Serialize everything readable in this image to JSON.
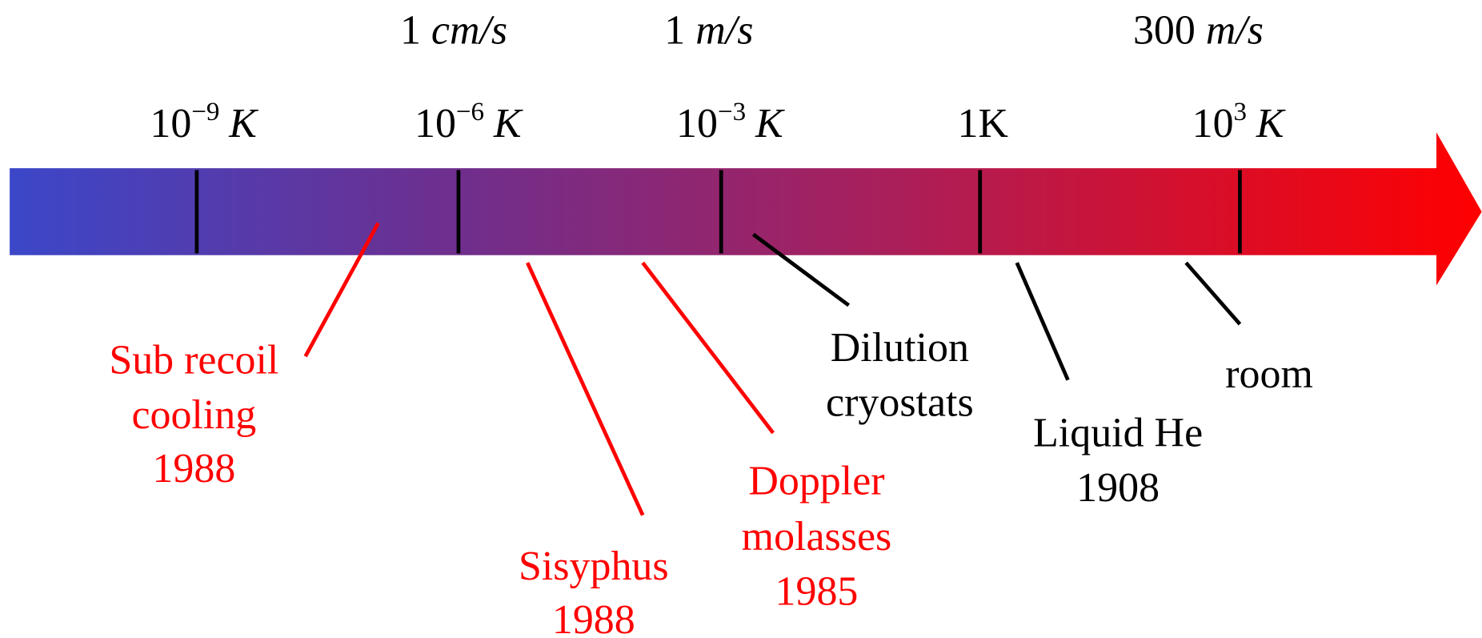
{
  "speed_labels": [
    {
      "number": "1",
      "unit": "cm/s"
    },
    {
      "number": "1",
      "unit": "m/s"
    },
    {
      "number": "300",
      "unit": "m/s"
    }
  ],
  "temperature_labels": [
    {
      "base": "10",
      "exponent": "−9",
      "unit": "K"
    },
    {
      "base": "10",
      "exponent": "−6",
      "unit": "K"
    },
    {
      "base": "10",
      "exponent": "−3",
      "unit": "K"
    },
    {
      "text": "1K"
    },
    {
      "base": "10",
      "exponent": "3",
      "unit": "K"
    }
  ],
  "annotations": [
    {
      "lines": [
        "Sub recoil",
        "cooling",
        "1988"
      ]
    },
    {
      "lines": [
        "Sisyphus",
        "1988"
      ]
    },
    {
      "lines": [
        "Doppler",
        "molasses",
        "1985"
      ]
    },
    {
      "lines": [
        "Dilution",
        "cryostats"
      ]
    },
    {
      "lines": [
        "Liquid He",
        "1908"
      ]
    },
    {
      "lines": [
        "room"
      ]
    }
  ]
}
